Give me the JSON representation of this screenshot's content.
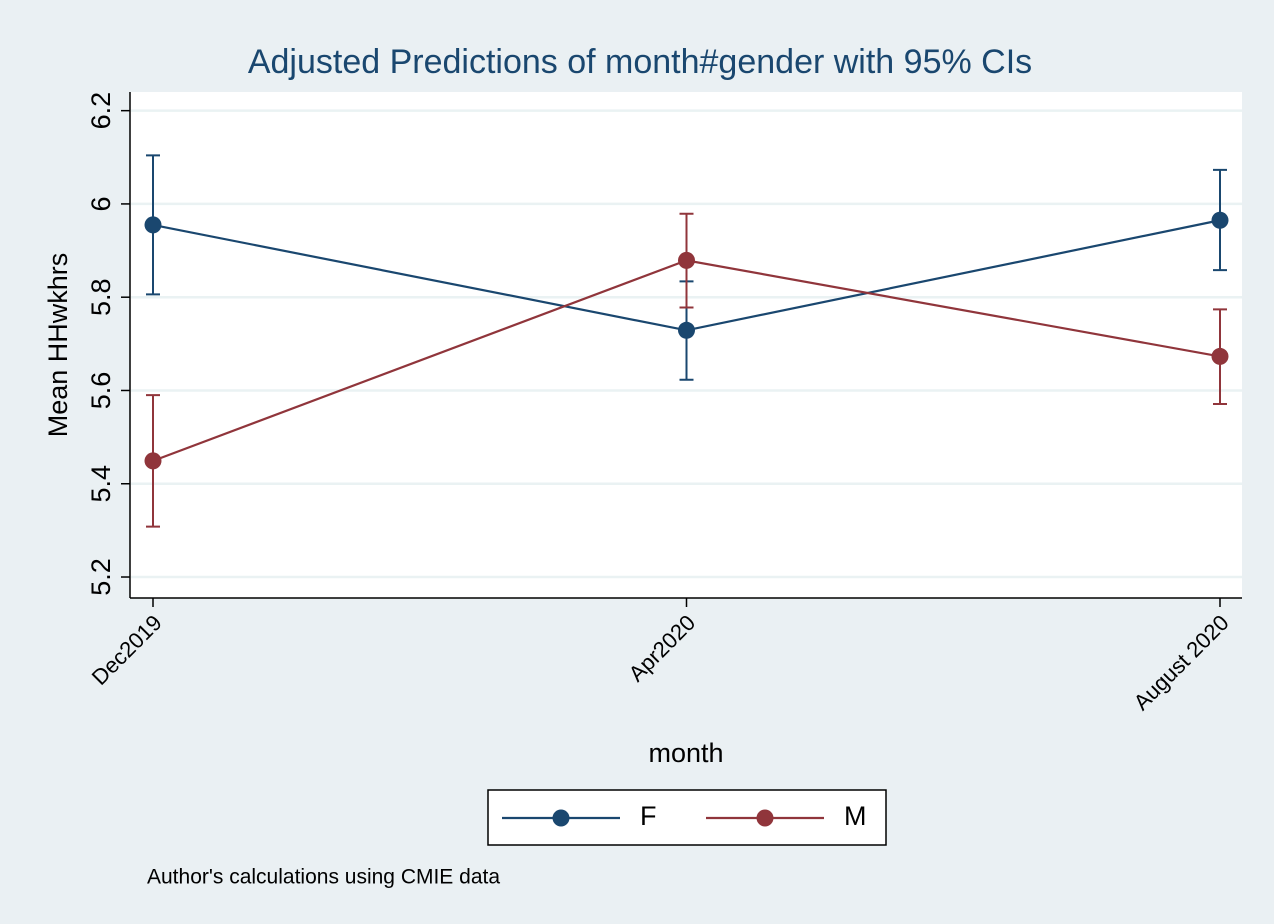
{
  "chart_data": {
    "type": "line",
    "title": "Adjusted Predictions of month#gender with 95% CIs",
    "x_label": "month",
    "y_label": "Mean HHwkhrs",
    "note": "Author's calculations using CMIE data",
    "categories": [
      "Dec2019",
      "Apr2020",
      "August 2020"
    ],
    "series": [
      {
        "name": "F",
        "color": "#1a476f",
        "values": [
          5.955,
          5.729,
          5.965
        ],
        "lower": [
          5.806,
          5.623,
          5.858
        ],
        "upper": [
          6.104,
          5.834,
          6.073
        ]
      },
      {
        "name": "M",
        "color": "#90353b",
        "values": [
          5.449,
          5.879,
          5.673
        ],
        "lower": [
          5.308,
          5.778,
          5.571
        ],
        "upper": [
          5.59,
          5.979,
          5.774
        ]
      }
    ],
    "ylim": [
      5.155,
      6.24
    ],
    "yticks": [
      5.2,
      5.4,
      5.6,
      5.8,
      6,
      6.2
    ],
    "grid": true,
    "legend": "bottom"
  }
}
